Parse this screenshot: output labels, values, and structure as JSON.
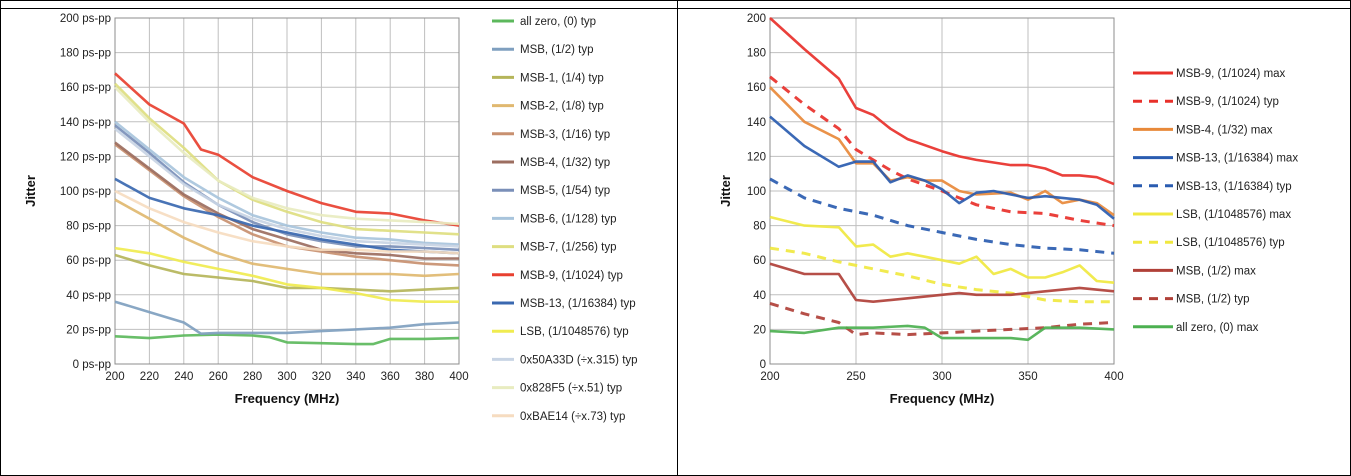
{
  "chart_data": [
    {
      "type": "line",
      "xlabel": "Frequency (MHz)",
      "ylabel": "Jitter",
      "xlim": [
        200,
        400
      ],
      "ylim": [
        0,
        200
      ],
      "x_ticks": [
        "200",
        "220",
        "240",
        "260",
        "280",
        "300",
        "320",
        "340",
        "360",
        "380",
        "400"
      ],
      "y_ticks": [
        "0 ps-pp",
        "20 ps-pp",
        "40 ps-pp",
        "60 ps-pp",
        "80 ps-pp",
        "100 ps-pp",
        "120 ps-pp",
        "140 ps-pp",
        "160 ps-pp",
        "180 ps-pp",
        "200 ps-pp"
      ],
      "grid": true,
      "legend": "right",
      "series": [
        {
          "name": "all zero, (0) typ",
          "color": "#5cb85c",
          "dash": false,
          "x": [
            200,
            220,
            240,
            260,
            280,
            290,
            300,
            320,
            340,
            350,
            360,
            380,
            400
          ],
          "values": [
            16,
            15,
            16.5,
            17,
            16.5,
            15.5,
            12.5,
            12,
            11.5,
            11.5,
            14.5,
            14.5,
            15
          ]
        },
        {
          "name": "MSB, (1/2) typ",
          "color": "#7f9fbf",
          "dash": false,
          "x": [
            200,
            220,
            240,
            250,
            260,
            280,
            300,
            320,
            340,
            360,
            380,
            400
          ],
          "values": [
            36,
            30,
            24,
            17.5,
            18,
            18,
            18,
            19,
            20,
            21,
            23,
            24
          ]
        },
        {
          "name": "MSB-1, (1/4) typ",
          "color": "#b5b55a",
          "dash": false,
          "x": [
            200,
            220,
            240,
            260,
            280,
            300,
            320,
            340,
            360,
            380,
            400
          ],
          "values": [
            63,
            57,
            52,
            50,
            48,
            44,
            44,
            43,
            42,
            43,
            44
          ]
        },
        {
          "name": "MSB-2, (1/8) typ",
          "color": "#e0b870",
          "dash": false,
          "x": [
            200,
            220,
            240,
            260,
            280,
            300,
            320,
            340,
            360,
            380,
            400
          ],
          "values": [
            95,
            84,
            73,
            64,
            58,
            55,
            52,
            52,
            52,
            51,
            52
          ]
        },
        {
          "name": "MSB-3, (1/16) typ",
          "color": "#c89070",
          "dash": false,
          "x": [
            200,
            220,
            240,
            260,
            280,
            300,
            320,
            340,
            360,
            380,
            400
          ],
          "values": [
            127,
            112,
            97,
            85,
            75,
            68,
            65,
            62,
            60,
            58,
            57
          ]
        },
        {
          "name": "MSB-4, (1/32) typ",
          "color": "#9c6e60",
          "dash": false,
          "x": [
            200,
            220,
            240,
            260,
            280,
            300,
            320,
            340,
            360,
            380,
            400
          ],
          "values": [
            128,
            113,
            98,
            87,
            78,
            72,
            66,
            64,
            63,
            61,
            61
          ]
        },
        {
          "name": "MSB-5, (1/54) typ",
          "color": "#7a8fb8",
          "dash": false,
          "x": [
            200,
            220,
            240,
            260,
            280,
            300,
            320,
            340,
            360,
            380,
            400
          ],
          "values": [
            138,
            122,
            105,
            92,
            82,
            75,
            71,
            68,
            68,
            67,
            66
          ]
        },
        {
          "name": "MSB-6, (1/128) typ",
          "color": "#a8c4dc",
          "dash": false,
          "x": [
            200,
            220,
            240,
            260,
            280,
            300,
            320,
            340,
            360,
            380,
            400
          ],
          "values": [
            140,
            124,
            108,
            96,
            86,
            80,
            76,
            73,
            72,
            70,
            69
          ]
        },
        {
          "name": "MSB-7, (1/256) typ",
          "color": "#dede80",
          "dash": false,
          "x": [
            200,
            220,
            240,
            260,
            280,
            300,
            320,
            340,
            360,
            380,
            400
          ],
          "values": [
            162,
            142,
            125,
            106,
            95,
            88,
            82,
            78,
            77,
            76,
            75
          ]
        },
        {
          "name": "MSB-9, (1/1024) typ",
          "color": "#e84030",
          "dash": false,
          "x": [
            200,
            220,
            240,
            250,
            260,
            280,
            300,
            320,
            340,
            360,
            380,
            400
          ],
          "values": [
            168,
            150,
            139,
            124,
            121,
            108,
            100,
            93,
            88,
            87,
            83,
            80
          ]
        },
        {
          "name": "MSB-13, (1/16384) typ",
          "color": "#3a68b0",
          "dash": false,
          "x": [
            200,
            220,
            240,
            260,
            280,
            300,
            320,
            340,
            360,
            380,
            400
          ],
          "values": [
            107,
            96,
            90,
            86,
            80,
            76,
            72,
            69,
            66,
            65,
            64
          ]
        },
        {
          "name": "LSB, (1/1048576) typ",
          "color": "#f0ec50",
          "dash": false,
          "x": [
            200,
            220,
            240,
            260,
            280,
            300,
            320,
            340,
            360,
            380,
            400
          ],
          "values": [
            67,
            64,
            59,
            55,
            51,
            46,
            44,
            41,
            37,
            36,
            36
          ]
        },
        {
          "name": "0x50A33D (÷x.315) typ",
          "color": "#c8d4e4",
          "dash": false,
          "x": [
            200,
            220,
            240,
            260,
            280,
            300,
            320,
            340,
            360,
            380,
            400
          ],
          "values": [
            136,
            120,
            104,
            92,
            84,
            78,
            74,
            71,
            70,
            69,
            68
          ]
        },
        {
          "name": "0x828F5 (÷x.51) typ",
          "color": "#e8ecc0",
          "dash": false,
          "x": [
            200,
            220,
            240,
            260,
            280,
            300,
            320,
            340,
            360,
            380,
            400
          ],
          "values": [
            160,
            140,
            122,
            106,
            96,
            90,
            86,
            84,
            83,
            82,
            81
          ]
        },
        {
          "name": "0xBAE14 (÷x.73) typ",
          "color": "#f6dcc0",
          "dash": false,
          "x": [
            200,
            220,
            240,
            260,
            280,
            300,
            320,
            340,
            360,
            380,
            400
          ],
          "values": [
            100,
            90,
            82,
            76,
            71,
            68,
            66,
            66,
            65,
            65,
            64
          ]
        }
      ]
    },
    {
      "type": "line",
      "xlabel": "Frequency (MHz)",
      "ylabel": "Jitter",
      "xlim": [
        200,
        400
      ],
      "ylim": [
        0,
        200
      ],
      "x_ticks": [
        "200",
        "250",
        "300",
        "350",
        "400"
      ],
      "y_ticks": [
        "0",
        "20",
        "40",
        "60",
        "80",
        "100",
        "120",
        "140",
        "160",
        "180",
        "200"
      ],
      "grid": true,
      "legend": "right",
      "series": [
        {
          "name": "MSB-9, (1/1024) max",
          "color": "#e8302a",
          "dash": false,
          "x": [
            200,
            220,
            240,
            250,
            260,
            270,
            280,
            300,
            310,
            320,
            340,
            350,
            360,
            370,
            380,
            390,
            400
          ],
          "values": [
            200,
            182,
            165,
            148,
            144,
            136,
            130,
            123,
            120,
            118,
            115,
            115,
            113,
            109,
            109,
            108,
            104
          ]
        },
        {
          "name": "MSB-9, (1/1024) typ",
          "color": "#e8302a",
          "dash": true,
          "x": [
            200,
            220,
            240,
            250,
            260,
            270,
            280,
            300,
            310,
            320,
            340,
            360,
            380,
            400
          ],
          "values": [
            166,
            150,
            136,
            124,
            118,
            112,
            107,
            100,
            96,
            92,
            88,
            87,
            83,
            80
          ]
        },
        {
          "name": "MSB-4, (1/32) max",
          "color": "#e8893a",
          "dash": false,
          "x": [
            200,
            220,
            240,
            250,
            260,
            270,
            280,
            290,
            300,
            310,
            320,
            340,
            350,
            360,
            370,
            380,
            390,
            400
          ],
          "values": [
            160,
            140,
            130,
            116,
            116,
            106,
            108,
            106,
            106,
            100,
            98,
            99,
            95,
            100,
            93,
            95,
            93,
            86
          ]
        },
        {
          "name": "MSB-13, (1/16384) max",
          "color": "#2a5cb0",
          "dash": false,
          "x": [
            200,
            220,
            240,
            250,
            260,
            270,
            280,
            290,
            300,
            310,
            320,
            330,
            340,
            350,
            360,
            370,
            380,
            390,
            400
          ],
          "values": [
            143,
            126,
            114,
            117,
            117,
            105,
            109,
            106,
            101,
            93,
            99,
            100,
            98,
            96,
            97,
            96,
            95,
            92,
            84
          ]
        },
        {
          "name": "MSB-13, (1/16384) typ",
          "color": "#2a5cb0",
          "dash": true,
          "x": [
            200,
            220,
            240,
            260,
            280,
            300,
            320,
            340,
            360,
            380,
            400
          ],
          "values": [
            107,
            96,
            90,
            86,
            80,
            76,
            72,
            69,
            67,
            66,
            64
          ]
        },
        {
          "name": "LSB, (1/1048576) max",
          "color": "#f0e840",
          "dash": false,
          "x": [
            200,
            220,
            240,
            250,
            260,
            270,
            280,
            290,
            300,
            310,
            320,
            330,
            340,
            350,
            360,
            370,
            380,
            390,
            400
          ],
          "values": [
            85,
            80,
            79,
            68,
            69,
            62,
            64,
            62,
            60,
            58,
            62,
            52,
            55,
            50,
            50,
            53,
            57,
            48,
            47
          ]
        },
        {
          "name": "LSB, (1/1048576) typ",
          "color": "#f0e840",
          "dash": true,
          "x": [
            200,
            220,
            240,
            260,
            280,
            300,
            320,
            340,
            360,
            380,
            400
          ],
          "values": [
            67,
            64,
            59,
            55,
            51,
            46,
            43,
            41,
            37,
            36,
            36
          ]
        },
        {
          "name": "MSB, (1/2) max",
          "color": "#b04038",
          "dash": false,
          "x": [
            200,
            220,
            240,
            250,
            260,
            280,
            300,
            310,
            320,
            340,
            360,
            380,
            400
          ],
          "values": [
            58,
            52,
            52,
            37,
            36,
            38,
            40,
            41,
            40,
            40,
            42,
            44,
            42
          ]
        },
        {
          "name": "MSB, (1/2) typ",
          "color": "#b04038",
          "dash": true,
          "x": [
            200,
            220,
            240,
            250,
            260,
            280,
            300,
            320,
            340,
            360,
            380,
            400
          ],
          "values": [
            35,
            29,
            24,
            17,
            18,
            17,
            18,
            19,
            20,
            21,
            23,
            24
          ]
        },
        {
          "name": "all zero, (0) max",
          "color": "#4cb050",
          "dash": false,
          "x": [
            200,
            220,
            240,
            260,
            280,
            290,
            300,
            320,
            340,
            350,
            360,
            380,
            400
          ],
          "values": [
            19,
            18,
            21,
            21,
            22,
            21,
            15,
            15,
            15,
            14,
            21,
            21,
            20
          ]
        }
      ]
    }
  ]
}
